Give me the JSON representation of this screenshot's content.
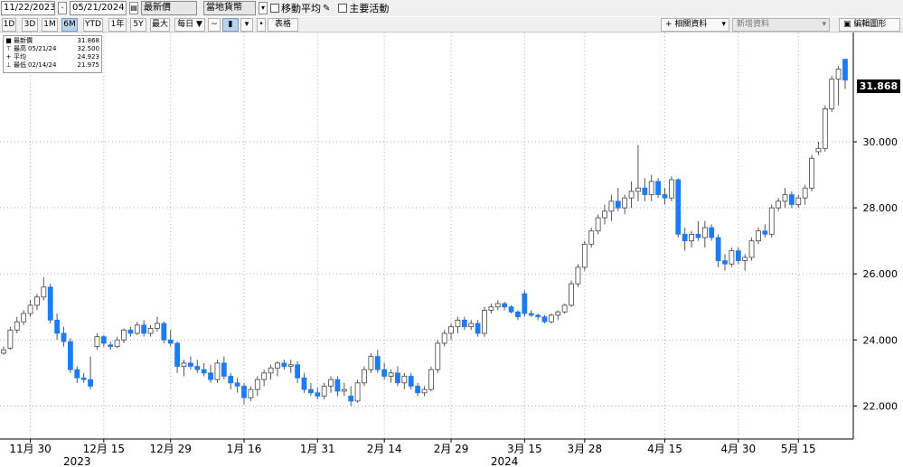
{
  "toolbar": {
    "start_date": "11/22/2023",
    "end_date": "05/21/2024",
    "price_field": "最新價",
    "currency": "當地貨幣",
    "moving_avg_label": "移動平均",
    "key_events_label": "主要活動",
    "periods": [
      "1D",
      "3D",
      "1M",
      "6M",
      "YTD",
      "1年",
      "5Y",
      "最大"
    ],
    "active_period": "6M",
    "frequency": "每日",
    "chart_type_label": "表格",
    "related_data_label": "相關資料",
    "new_data_label": "新增資料",
    "edit_chart_label": "編輯圖形"
  },
  "legend": {
    "rows": [
      {
        "icon": "■",
        "label": "最新價",
        "date": "",
        "value": "31.868"
      },
      {
        "icon": "⊤",
        "label": "最高",
        "date": "05/21/24",
        "value": "32.500"
      },
      {
        "icon": "+",
        "label": "平均",
        "date": "",
        "value": "24.923"
      },
      {
        "icon": "⊥",
        "label": "最低",
        "date": "02/14/24",
        "value": "21.975"
      }
    ]
  },
  "chart_data": {
    "type": "candlestick",
    "last_value_label": "31.868",
    "ylim": [
      21.0,
      33.2
    ],
    "y_ticks": [
      22,
      24,
      26,
      28,
      30
    ],
    "y_tick_labels": [
      "22.000",
      "24.000",
      "26.000",
      "28.000",
      "30.000"
    ],
    "x_tick_labels": [
      "11月 30",
      "12月 15",
      "12月 29",
      "1月 16",
      "1月 31",
      "2月 14",
      "2月 29",
      "3月 15",
      "3月 28",
      "4月 15",
      "4月 30",
      "5月 15"
    ],
    "x_tick_index": [
      4,
      15,
      25,
      36,
      47,
      57,
      67,
      78,
      87,
      99,
      110,
      119
    ],
    "year_labels": [
      {
        "text": "2023",
        "index": 11
      },
      {
        "text": "2024",
        "index": 75
      }
    ],
    "grid": true,
    "colors": {
      "up": "#ffffff",
      "down": "#1e7cf2",
      "wick": "#555555"
    },
    "ohlc": [
      [
        23.6,
        23.8,
        23.55,
        23.7
      ],
      [
        23.75,
        24.4,
        23.7,
        24.3
      ],
      [
        24.3,
        24.7,
        24.2,
        24.55
      ],
      [
        24.55,
        24.9,
        24.45,
        24.8
      ],
      [
        24.8,
        25.2,
        24.7,
        25.05
      ],
      [
        25.05,
        25.4,
        24.9,
        25.3
      ],
      [
        25.3,
        25.9,
        25.2,
        25.6
      ],
      [
        25.6,
        25.7,
        24.5,
        24.6
      ],
      [
        24.6,
        24.8,
        24.0,
        24.2
      ],
      [
        24.2,
        24.4,
        23.8,
        23.95
      ],
      [
        23.95,
        24.05,
        23.0,
        23.1
      ],
      [
        23.1,
        23.2,
        22.7,
        22.85
      ],
      [
        22.85,
        23.0,
        22.7,
        22.8
      ],
      [
        22.8,
        23.5,
        22.5,
        22.6
      ],
      [
        23.8,
        24.2,
        23.7,
        24.1
      ],
      [
        24.1,
        24.15,
        23.8,
        23.9
      ],
      [
        23.85,
        23.95,
        23.7,
        23.8
      ],
      [
        23.8,
        24.1,
        23.75,
        24.0
      ],
      [
        24.0,
        24.35,
        23.9,
        24.3
      ],
      [
        24.3,
        24.4,
        24.1,
        24.2
      ],
      [
        24.2,
        24.55,
        24.15,
        24.45
      ],
      [
        24.45,
        24.6,
        24.1,
        24.2
      ],
      [
        24.2,
        24.45,
        24.1,
        24.35
      ],
      [
        24.35,
        24.7,
        24.25,
        24.5
      ],
      [
        24.5,
        24.55,
        23.9,
        24.0
      ],
      [
        24.0,
        24.3,
        23.8,
        23.9
      ],
      [
        23.9,
        23.95,
        23.0,
        23.2
      ],
      [
        23.2,
        23.4,
        22.9,
        23.3
      ],
      [
        23.3,
        23.5,
        23.1,
        23.2
      ],
      [
        23.2,
        23.4,
        23.0,
        23.1
      ],
      [
        23.1,
        23.3,
        22.9,
        23.0
      ],
      [
        23.0,
        23.25,
        22.7,
        22.8
      ],
      [
        22.8,
        23.4,
        22.7,
        23.3
      ],
      [
        23.3,
        23.5,
        22.8,
        22.9
      ],
      [
        22.9,
        23.0,
        22.5,
        22.7
      ],
      [
        22.7,
        22.85,
        22.4,
        22.6
      ],
      [
        22.6,
        22.7,
        22.05,
        22.25
      ],
      [
        22.25,
        22.6,
        22.15,
        22.5
      ],
      [
        22.5,
        22.9,
        22.3,
        22.8
      ],
      [
        22.8,
        23.1,
        22.6,
        23.0
      ],
      [
        23.0,
        23.25,
        22.8,
        23.15
      ],
      [
        23.15,
        23.35,
        22.9,
        23.3
      ],
      [
        23.3,
        23.4,
        23.1,
        23.2
      ],
      [
        23.2,
        23.4,
        23.0,
        23.25
      ],
      [
        23.25,
        23.35,
        22.7,
        22.85
      ],
      [
        22.85,
        23.0,
        22.4,
        22.5
      ],
      [
        22.5,
        22.7,
        22.3,
        22.4
      ],
      [
        22.4,
        22.55,
        22.2,
        22.3
      ],
      [
        22.3,
        22.7,
        22.2,
        22.6
      ],
      [
        22.6,
        22.9,
        22.4,
        22.8
      ],
      [
        22.8,
        22.9,
        22.3,
        22.45
      ],
      [
        22.45,
        22.7,
        22.3,
        22.5
      ],
      [
        22.3,
        22.6,
        22.0,
        22.15
      ],
      [
        22.15,
        22.8,
        22.1,
        22.7
      ],
      [
        22.7,
        23.2,
        22.6,
        23.1
      ],
      [
        23.1,
        23.6,
        23.0,
        23.5
      ],
      [
        23.5,
        23.7,
        23.0,
        23.1
      ],
      [
        23.1,
        23.3,
        22.8,
        22.9
      ],
      [
        22.9,
        23.1,
        22.7,
        23.0
      ],
      [
        23.0,
        23.2,
        22.6,
        22.7
      ],
      [
        22.7,
        23.0,
        22.5,
        22.9
      ],
      [
        22.9,
        23.0,
        22.5,
        22.6
      ],
      [
        22.6,
        22.7,
        22.3,
        22.4
      ],
      [
        22.4,
        22.6,
        22.3,
        22.5
      ],
      [
        22.5,
        23.2,
        22.45,
        23.1
      ],
      [
        23.1,
        24.0,
        23.0,
        23.9
      ],
      [
        23.9,
        24.3,
        23.8,
        24.2
      ],
      [
        24.2,
        24.5,
        24.0,
        24.4
      ],
      [
        24.4,
        24.7,
        24.2,
        24.6
      ],
      [
        24.6,
        24.7,
        24.3,
        24.4
      ],
      [
        24.4,
        24.6,
        24.3,
        24.5
      ],
      [
        24.5,
        24.6,
        24.1,
        24.2
      ],
      [
        24.2,
        25.0,
        24.1,
        24.9
      ],
      [
        24.9,
        25.1,
        24.8,
        25.0
      ],
      [
        25.0,
        25.2,
        24.9,
        25.1
      ],
      [
        25.1,
        25.15,
        24.9,
        25.0
      ],
      [
        25.0,
        25.05,
        24.8,
        24.85
      ],
      [
        24.85,
        24.9,
        24.6,
        24.7
      ],
      [
        25.4,
        25.5,
        24.7,
        24.8
      ],
      [
        24.8,
        24.9,
        24.7,
        24.75
      ],
      [
        24.75,
        24.8,
        24.6,
        24.7
      ],
      [
        24.7,
        24.75,
        24.5,
        24.55
      ],
      [
        24.55,
        24.8,
        24.5,
        24.75
      ],
      [
        24.75,
        24.9,
        24.6,
        24.85
      ],
      [
        24.85,
        25.1,
        24.8,
        25.05
      ],
      [
        25.05,
        25.8,
        25.0,
        25.7
      ],
      [
        25.7,
        26.3,
        25.6,
        26.2
      ],
      [
        26.2,
        27.0,
        26.1,
        26.9
      ],
      [
        26.9,
        27.4,
        26.8,
        27.3
      ],
      [
        27.3,
        27.8,
        27.2,
        27.7
      ],
      [
        27.7,
        28.1,
        27.5,
        27.9
      ],
      [
        27.9,
        28.4,
        27.6,
        28.2
      ],
      [
        28.2,
        28.6,
        27.9,
        28.0
      ],
      [
        28.0,
        28.4,
        27.8,
        28.3
      ],
      [
        28.3,
        28.8,
        28.0,
        28.5
      ],
      [
        28.5,
        29.9,
        28.2,
        28.6
      ],
      [
        28.6,
        28.9,
        28.2,
        28.4
      ],
      [
        28.4,
        29.0,
        28.2,
        28.8
      ],
      [
        28.8,
        28.9,
        28.3,
        28.4
      ],
      [
        28.4,
        28.6,
        28.1,
        28.3
      ],
      [
        28.3,
        28.95,
        28.2,
        28.85
      ],
      [
        28.85,
        28.9,
        27.1,
        27.2
      ],
      [
        27.2,
        27.4,
        26.7,
        27.0
      ],
      [
        27.0,
        27.3,
        26.8,
        27.2
      ],
      [
        27.2,
        27.6,
        27.0,
        27.1
      ],
      [
        27.1,
        27.6,
        26.8,
        27.4
      ],
      [
        27.4,
        27.5,
        27.0,
        27.1
      ],
      [
        27.1,
        27.2,
        26.2,
        26.4
      ],
      [
        26.4,
        26.6,
        26.1,
        26.3
      ],
      [
        26.3,
        26.8,
        26.2,
        26.7
      ],
      [
        26.7,
        26.8,
        26.3,
        26.4
      ],
      [
        26.4,
        26.6,
        26.1,
        26.5
      ],
      [
        26.5,
        27.1,
        26.4,
        27.0
      ],
      [
        27.0,
        27.4,
        26.9,
        27.3
      ],
      [
        27.3,
        27.5,
        27.1,
        27.2
      ],
      [
        27.2,
        28.1,
        27.1,
        28.0
      ],
      [
        28.0,
        28.3,
        27.9,
        28.2
      ],
      [
        28.2,
        28.6,
        28.0,
        28.4
      ],
      [
        28.4,
        28.5,
        28.0,
        28.1
      ],
      [
        28.1,
        28.4,
        28.0,
        28.3
      ],
      [
        28.3,
        28.7,
        28.1,
        28.6
      ],
      [
        28.6,
        29.6,
        28.5,
        29.5
      ],
      [
        29.7,
        30.0,
        29.6,
        29.8
      ],
      [
        29.8,
        31.1,
        29.7,
        31.0
      ],
      [
        31.0,
        32.0,
        30.9,
        31.9
      ],
      [
        31.9,
        32.3,
        31.1,
        32.2
      ],
      [
        32.5,
        32.5,
        31.6,
        31.87
      ]
    ]
  }
}
